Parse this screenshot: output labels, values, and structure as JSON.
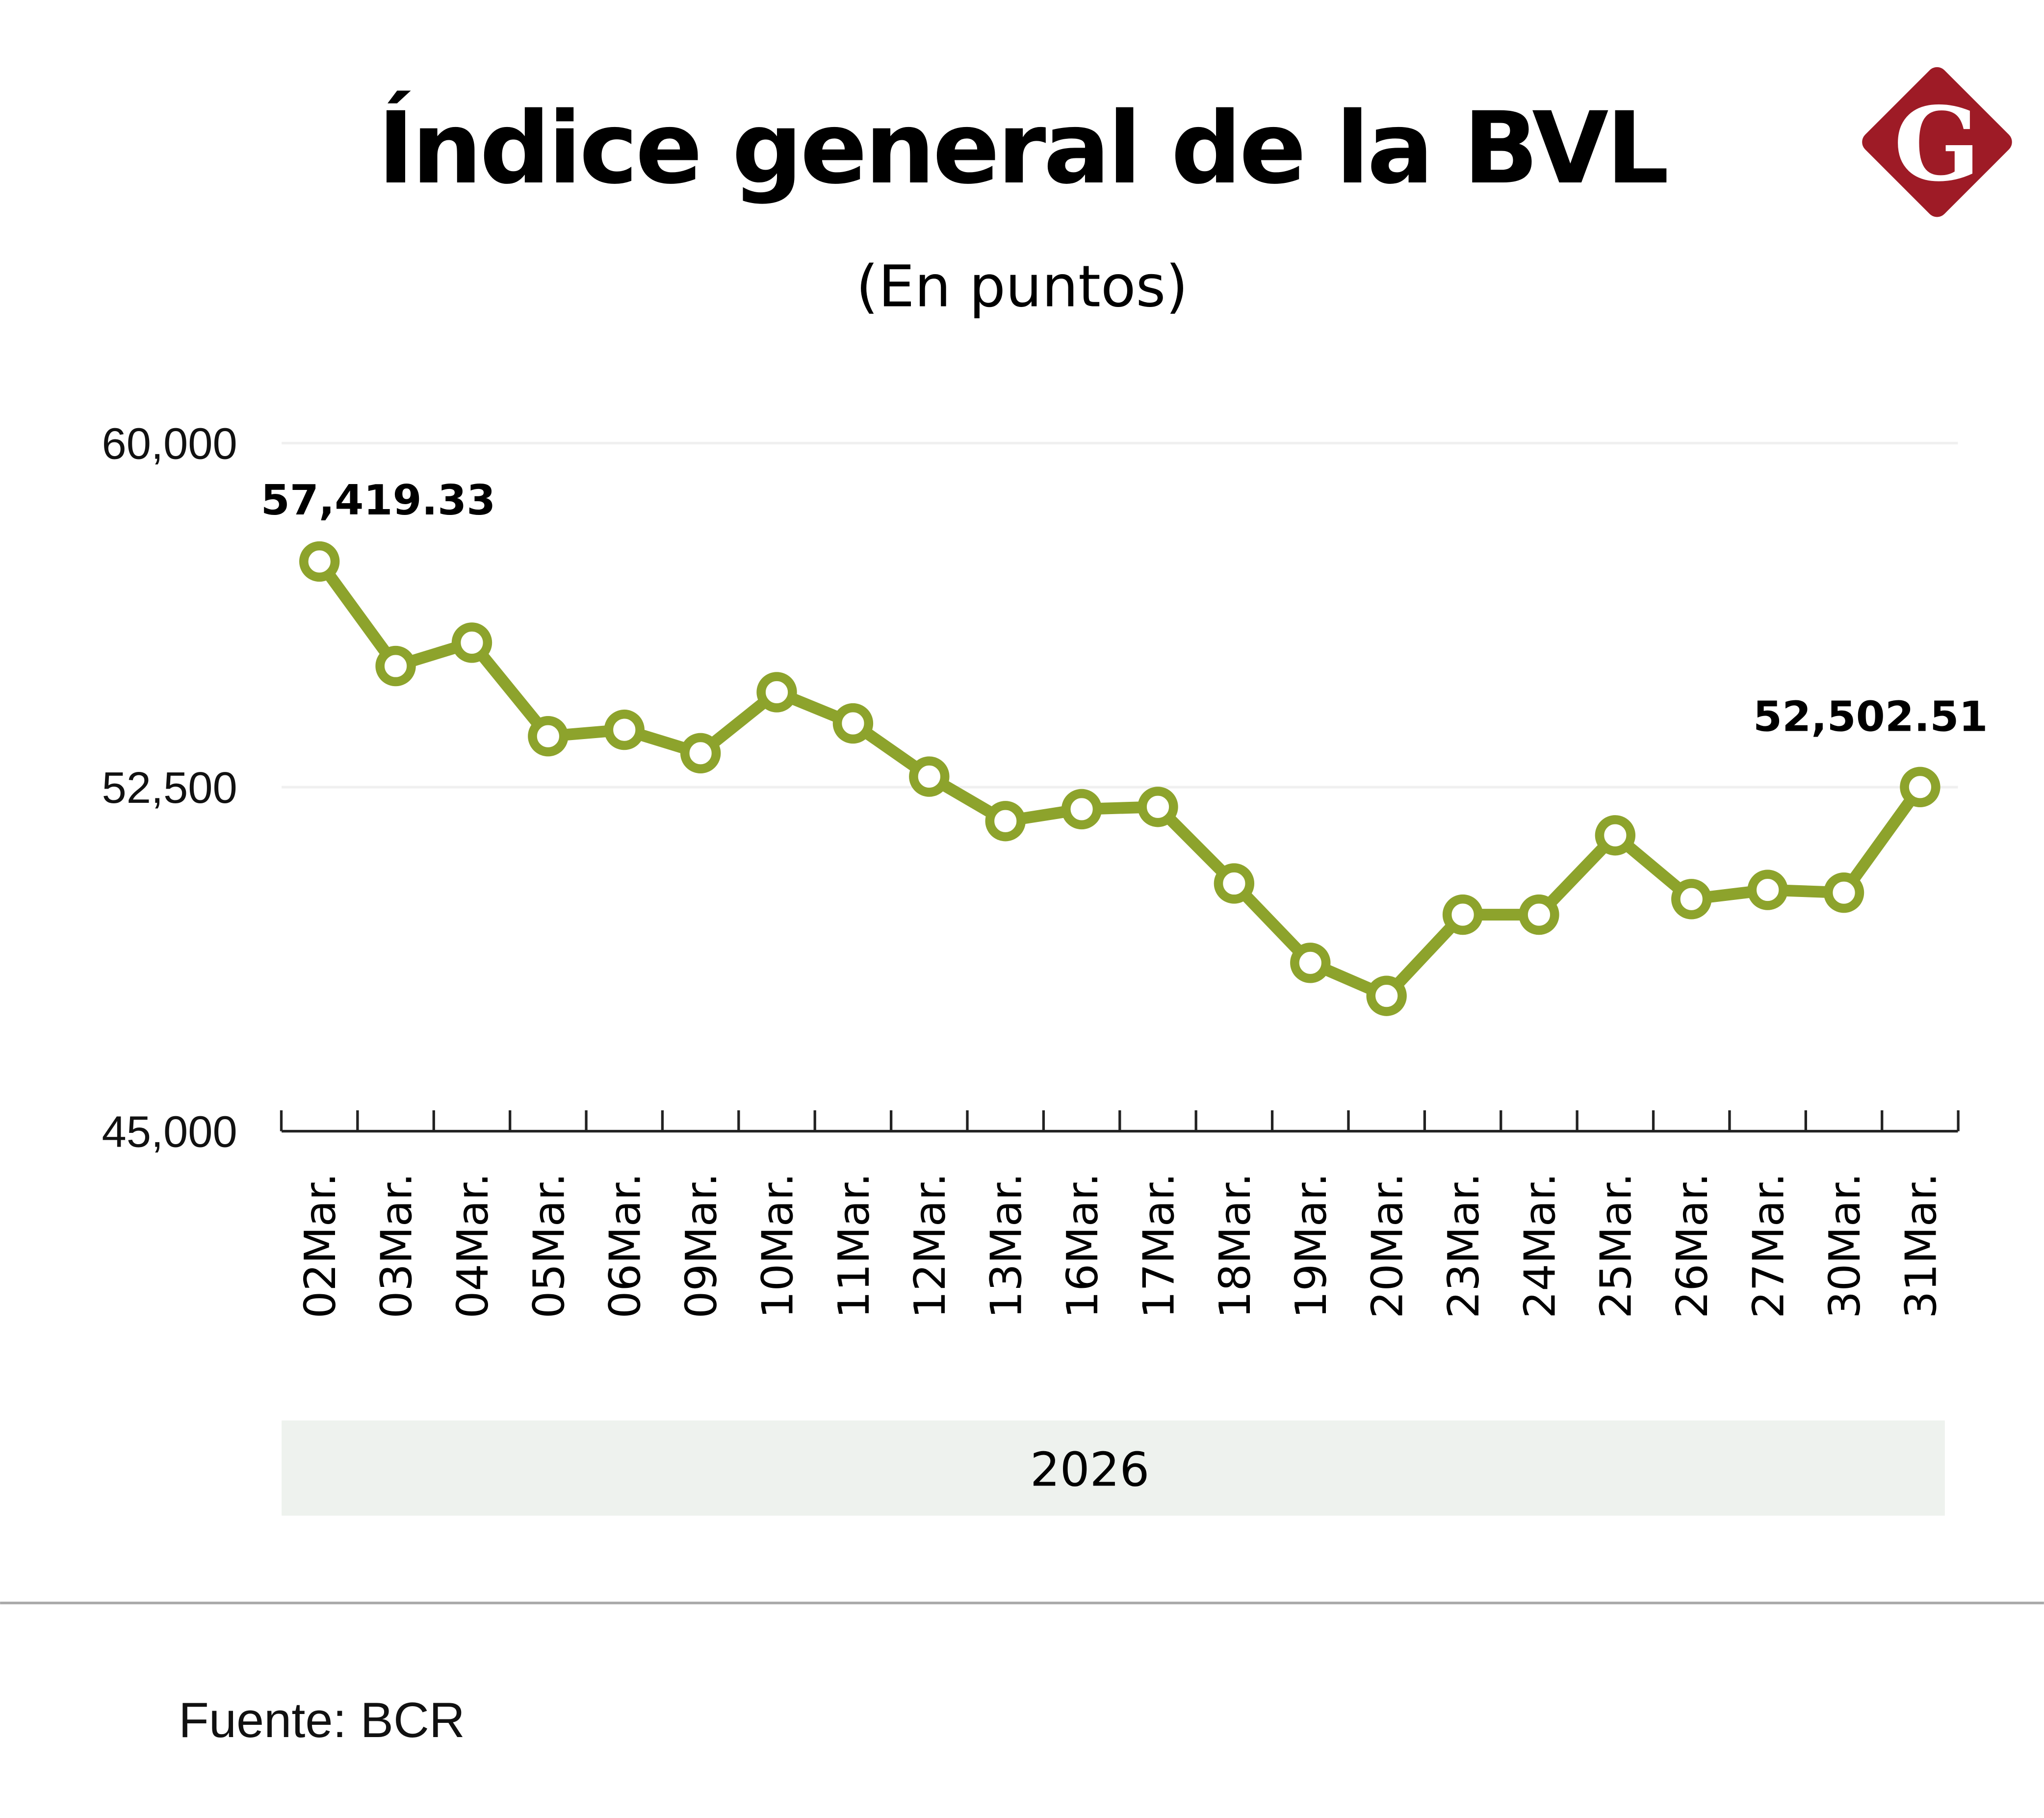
{
  "header": {
    "title": "Índice general de la BVL",
    "subtitle": "(En puntos)",
    "logo_text": "G"
  },
  "colors": {
    "line": "#8da32c",
    "logo": "#9e1b26",
    "year_band": "#eef2ee"
  },
  "chart_data": {
    "type": "line",
    "title": "Índice general de la BVL",
    "subtitle": "(En puntos)",
    "xlabel": "2026",
    "ylabel": "",
    "ylim": [
      45000,
      60000
    ],
    "yticks": [
      60000,
      52500,
      45000
    ],
    "ytick_labels": [
      "60,000",
      "52,500",
      "45,000"
    ],
    "grid": true,
    "categories": [
      "02Mar.",
      "03Mar.",
      "04Mar.",
      "05Mar.",
      "06Mar.",
      "09Mar.",
      "10Mar.",
      "11Mar.",
      "12Mar.",
      "13Mar.",
      "16Mar.",
      "17Mar.",
      "18Mar.",
      "19Mar.",
      "20Mar.",
      "23Mar.",
      "24Mar.",
      "25Mar.",
      "26Mar.",
      "27Mar.",
      "30Mar.",
      "31Mar."
    ],
    "values": [
      57419.33,
      55140,
      55650,
      53610,
      53750,
      53240,
      54570,
      53890,
      52730,
      51760,
      52020,
      52070,
      50400,
      48670,
      47950,
      49720,
      49720,
      51450,
      50060,
      50260,
      50200,
      52502.51
    ],
    "data_labels": [
      {
        "index": 0,
        "text": "57,419.33"
      },
      {
        "index": 21,
        "text": "52,502.51"
      }
    ]
  },
  "footer": {
    "source": "Fuente: BCR"
  }
}
